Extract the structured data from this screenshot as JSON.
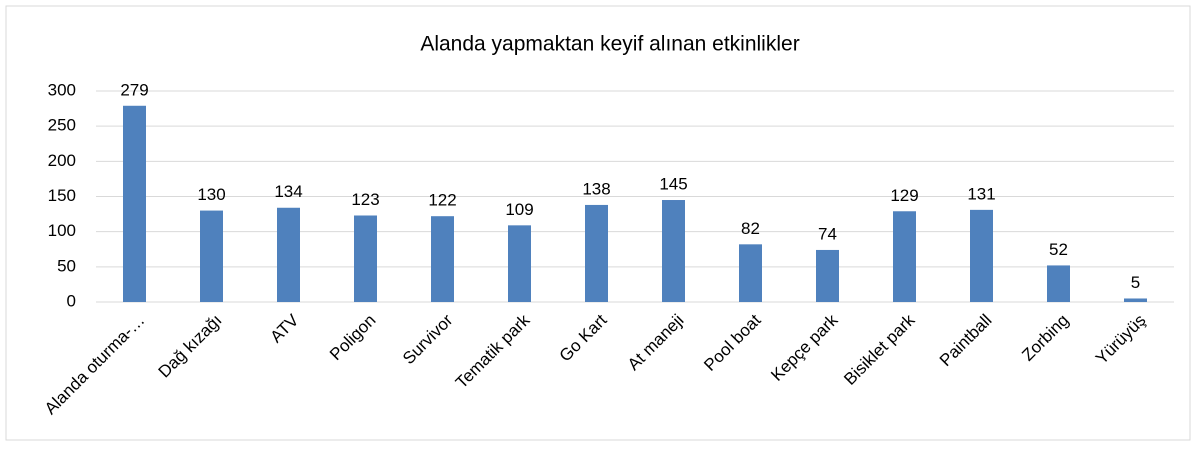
{
  "chart_data": {
    "type": "bar",
    "title": "Alanda yapmaktan keyif alınan etkinlikler",
    "categories": [
      "Alanda oturma-…",
      "Dağ kızağı",
      "ATV",
      "Poligon",
      "Survivor",
      "Tematik park",
      "Go Kart",
      "At maneji",
      "Pool boat",
      "Kepçe park",
      "Bisiklet park",
      "Paintball",
      "Zorbing",
      "Yürüyüş"
    ],
    "values": [
      279,
      130,
      134,
      123,
      122,
      109,
      138,
      145,
      82,
      74,
      129,
      131,
      52,
      5
    ],
    "color": "#4f81bd",
    "ylim": [
      0,
      300
    ],
    "yticks": [
      0,
      50,
      100,
      150,
      200,
      250,
      300
    ],
    "grid": true
  }
}
